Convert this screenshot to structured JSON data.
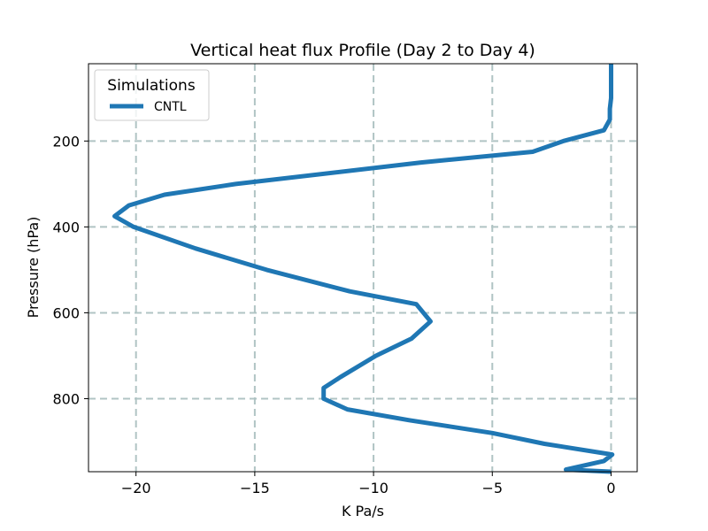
{
  "chart_data": {
    "type": "line",
    "title": "Vertical heat flux Profile (Day 2 to Day 4)",
    "xlabel": "K Pa/s",
    "ylabel": "Pressure (hPa)",
    "xlim": [
      -22.0,
      1.1
    ],
    "ylim": [
      970,
      20
    ],
    "y_inverted": true,
    "xticks": [
      -20,
      -15,
      -10,
      -5,
      0
    ],
    "xtick_labels": [
      "−20",
      "−15",
      "−10",
      "−5",
      "0"
    ],
    "yticks": [
      200,
      400,
      600,
      800
    ],
    "ytick_labels": [
      "200",
      "400",
      "600",
      "800"
    ],
    "grid": true,
    "grid_style": "dashed",
    "legend": {
      "title": "Simulations",
      "placement": "top-left"
    },
    "series": [
      {
        "name": "CNTL",
        "color": "#1f77b4",
        "points": [
          {
            "x": 0.0,
            "y": 20
          },
          {
            "x": 0.0,
            "y": 50
          },
          {
            "x": 0.0,
            "y": 100
          },
          {
            "x": -0.05,
            "y": 125
          },
          {
            "x": -0.05,
            "y": 150
          },
          {
            "x": -0.3,
            "y": 175
          },
          {
            "x": -2.0,
            "y": 200
          },
          {
            "x": -3.3,
            "y": 225
          },
          {
            "x": -8.0,
            "y": 250
          },
          {
            "x": -15.8,
            "y": 300
          },
          {
            "x": -18.8,
            "y": 325
          },
          {
            "x": -20.3,
            "y": 350
          },
          {
            "x": -20.9,
            "y": 375
          },
          {
            "x": -20.1,
            "y": 400
          },
          {
            "x": -17.5,
            "y": 450
          },
          {
            "x": -14.5,
            "y": 500
          },
          {
            "x": -11.0,
            "y": 550
          },
          {
            "x": -8.2,
            "y": 580
          },
          {
            "x": -7.6,
            "y": 620
          },
          {
            "x": -8.4,
            "y": 660
          },
          {
            "x": -9.9,
            "y": 700
          },
          {
            "x": -11.4,
            "y": 750
          },
          {
            "x": -12.1,
            "y": 775
          },
          {
            "x": -12.1,
            "y": 800
          },
          {
            "x": -11.1,
            "y": 825
          },
          {
            "x": -8.5,
            "y": 850
          },
          {
            "x": -5.0,
            "y": 880
          },
          {
            "x": -2.8,
            "y": 905
          },
          {
            "x": 0.05,
            "y": 930
          },
          {
            "x": -0.3,
            "y": 945
          },
          {
            "x": -1.9,
            "y": 965
          },
          {
            "x": 0.0,
            "y": 970
          }
        ]
      }
    ]
  }
}
